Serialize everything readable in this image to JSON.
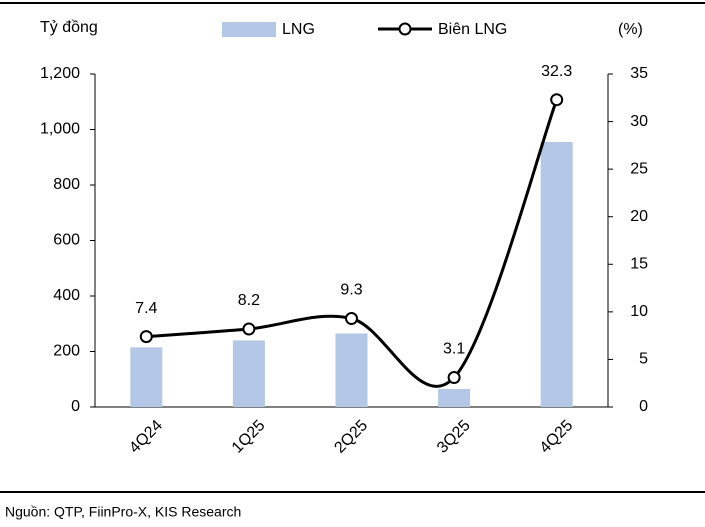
{
  "chart_data": {
    "type": "combo",
    "y_label": "Tỷ đồng",
    "y2_label": "(%)",
    "categories": [
      "4Q24",
      "1Q25",
      "2Q25",
      "3Q25",
      "4Q25"
    ],
    "series": [
      {
        "name": "LNG",
        "type": "bar",
        "color": "#b4c7e7",
        "values": [
          215,
          240,
          265,
          65,
          955
        ]
      },
      {
        "name": "Biên LNG",
        "type": "line",
        "color": "#000000",
        "axis": "y2",
        "smooth": true,
        "values": [
          7.4,
          8.2,
          9.3,
          3.1,
          32.3
        ]
      }
    ],
    "ylim": [
      0,
      1200
    ],
    "yticks": [
      0,
      200,
      400,
      600,
      800,
      {
        "value": 1000,
        "label": "1,000"
      },
      {
        "value": 1200,
        "label": "1,200"
      }
    ],
    "y2lim": [
      0,
      35
    ],
    "y2ticks": [
      0,
      5,
      10,
      15,
      20,
      25,
      30,
      35
    ],
    "source": "Nguồn: QTP, FiinPro-X, KIS Research"
  }
}
